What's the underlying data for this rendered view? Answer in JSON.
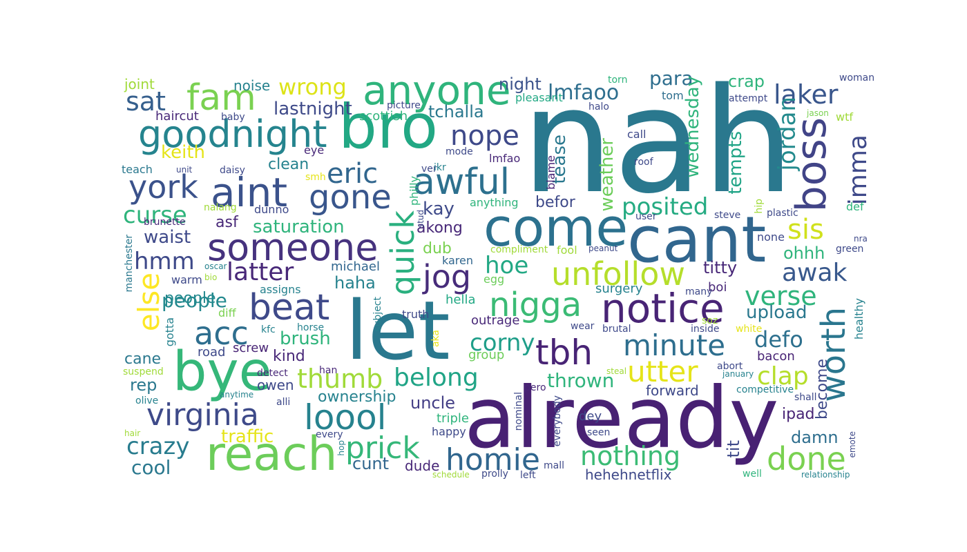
{
  "words": [
    {
      "text": "nah",
      "color": "#2a788e"
    },
    {
      "text": "already",
      "color": "#482173"
    },
    {
      "text": "let",
      "color": "#2a788e"
    },
    {
      "text": "cant",
      "color": "#31668e"
    },
    {
      "text": "bro",
      "color": "#22a884"
    },
    {
      "text": "come",
      "color": "#2c718e"
    },
    {
      "text": "bye",
      "color": "#35b779"
    },
    {
      "text": "reach",
      "color": "#6ccd5a"
    },
    {
      "text": "anyone",
      "color": "#2fb47c"
    },
    {
      "text": "aint",
      "color": "#3b528b"
    },
    {
      "text": "someone",
      "color": "#46327e"
    },
    {
      "text": "goodnight",
      "color": "#25848e"
    },
    {
      "text": "beat",
      "color": "#3e4989"
    },
    {
      "text": "notice",
      "color": "#482475"
    },
    {
      "text": "virginia",
      "color": "#3e4a89"
    },
    {
      "text": "loool",
      "color": "#26828e"
    },
    {
      "text": "awful",
      "color": "#2d708e"
    },
    {
      "text": "boss",
      "color": "#414487"
    },
    {
      "text": "worth",
      "color": "#2a768e"
    },
    {
      "text": "tbh",
      "color": "#482475"
    },
    {
      "text": "nigga",
      "color": "#3bbb75"
    },
    {
      "text": "unfollow",
      "color": "#b5de2b"
    },
    {
      "text": "minute",
      "color": "#2e6e8e"
    },
    {
      "text": "homie",
      "color": "#31668e"
    },
    {
      "text": "prick",
      "color": "#35b779"
    },
    {
      "text": "done",
      "color": "#7ad151"
    },
    {
      "text": "gone",
      "color": "#39568c"
    },
    {
      "text": "fam",
      "color": "#7ad151"
    },
    {
      "text": "york",
      "color": "#3b528b"
    },
    {
      "text": "quick",
      "color": "#2ab07f"
    },
    {
      "text": "jog",
      "color": "#472c7a"
    },
    {
      "text": "acc",
      "color": "#2e6e8e"
    },
    {
      "text": "else",
      "color": "#fde725"
    },
    {
      "text": "sis",
      "color": "#d0e11c"
    },
    {
      "text": "eric",
      "color": "#31668e"
    },
    {
      "text": "nope",
      "color": "#3e4989"
    },
    {
      "text": "utter",
      "color": "#e5e419"
    },
    {
      "text": "thumb",
      "color": "#a0da39"
    },
    {
      "text": "belong",
      "color": "#20a486"
    },
    {
      "text": "nothing",
      "color": "#3bbb75"
    },
    {
      "text": "crazy",
      "color": "#287c8e"
    },
    {
      "text": "latter",
      "color": "#482878"
    },
    {
      "text": "awak",
      "color": "#38588c"
    },
    {
      "text": "verse",
      "color": "#2fb47c"
    },
    {
      "text": "clap",
      "color": "#b5de2b"
    },
    {
      "text": "corny",
      "color": "#1f9e89"
    },
    {
      "text": "hoe",
      "color": "#22a884"
    },
    {
      "text": "laker",
      "color": "#39568c"
    },
    {
      "text": "imma",
      "color": "#3e4989"
    },
    {
      "text": "jordan",
      "color": "#238a8d"
    },
    {
      "text": "posited",
      "color": "#25ab82"
    },
    {
      "text": "wrong",
      "color": "#dde318"
    },
    {
      "text": "lmfaoo",
      "color": "#2e6e8e"
    },
    {
      "text": "defo",
      "color": "#2d708e"
    },
    {
      "text": "sat",
      "color": "#355f8d"
    },
    {
      "text": "curse",
      "color": "#2fb47c"
    },
    {
      "text": "hmm",
      "color": "#3e4989"
    },
    {
      "text": "people",
      "color": "#23898e"
    },
    {
      "text": "thrown",
      "color": "#2fb47c"
    },
    {
      "text": "para",
      "color": "#2e6e8e"
    },
    {
      "text": "tempts",
      "color": "#20a486"
    },
    {
      "text": "wednesday",
      "color": "#2fb47c"
    },
    {
      "text": "weather",
      "color": "#6ccd5a"
    },
    {
      "text": "tease",
      "color": "#2a788e"
    },
    {
      "text": "lastnight",
      "color": "#3e4a89"
    },
    {
      "text": "keith",
      "color": "#e5e419"
    },
    {
      "text": "night",
      "color": "#3b528b"
    },
    {
      "text": "tchalla",
      "color": "#2a788e"
    },
    {
      "text": "saturation",
      "color": "#2fb47c"
    },
    {
      "text": "traffic",
      "color": "#e5e419"
    },
    {
      "text": "ownership",
      "color": "#26828e"
    },
    {
      "text": "uncle",
      "color": "#433e85"
    },
    {
      "text": "cunt",
      "color": "#31668e"
    },
    {
      "text": "cool",
      "color": "#2a788e"
    },
    {
      "text": "waist",
      "color": "#3e4989"
    },
    {
      "text": "brush",
      "color": "#2fb47c"
    },
    {
      "text": "kind",
      "color": "#482878"
    },
    {
      "text": "haha",
      "color": "#26828e"
    },
    {
      "text": "titty",
      "color": "#482878"
    },
    {
      "text": "ohhh",
      "color": "#2fb47c"
    },
    {
      "text": "upload",
      "color": "#2a788e"
    },
    {
      "text": "ipad",
      "color": "#482475"
    },
    {
      "text": "damn",
      "color": "#2e6e8e"
    },
    {
      "text": "tit",
      "color": "#3e4989"
    },
    {
      "text": "become",
      "color": "#3e4989"
    },
    {
      "text": "hehehnetflix",
      "color": "#3e4989"
    },
    {
      "text": "kay",
      "color": "#3e4a89"
    },
    {
      "text": "akong",
      "color": "#482878"
    },
    {
      "text": "befor",
      "color": "#3e4989"
    },
    {
      "text": "crap",
      "color": "#2fb47c"
    },
    {
      "text": "clean",
      "color": "#26828e"
    },
    {
      "text": "rep",
      "color": "#2a788e"
    },
    {
      "text": "cane",
      "color": "#2a788e"
    },
    {
      "text": "asf",
      "color": "#482878"
    },
    {
      "text": "dub",
      "color": "#7ad151"
    },
    {
      "text": "forward",
      "color": "#3e4989"
    },
    {
      "text": "outrage",
      "color": "#482878"
    },
    {
      "text": "group",
      "color": "#6ccd5a"
    },
    {
      "text": "road",
      "color": "#3e4989"
    },
    {
      "text": "screw",
      "color": "#482475"
    },
    {
      "text": "owen",
      "color": "#3e4989"
    },
    {
      "text": "michael",
      "color": "#31668e"
    },
    {
      "text": "karen",
      "color": "#31668e"
    },
    {
      "text": "hella",
      "color": "#22a884"
    },
    {
      "text": "dude",
      "color": "#482878"
    },
    {
      "text": "triple",
      "color": "#2fb47c"
    },
    {
      "text": "happy",
      "color": "#3e4989"
    },
    {
      "text": "surgery",
      "color": "#26828e"
    },
    {
      "text": "boi",
      "color": "#482878"
    },
    {
      "text": "dey",
      "color": "#3e4989"
    },
    {
      "text": "bacon",
      "color": "#482475"
    },
    {
      "text": "haircut",
      "color": "#482878"
    },
    {
      "text": "joint",
      "color": "#a0da39"
    },
    {
      "text": "noise",
      "color": "#26828e"
    },
    {
      "text": "scottish",
      "color": "#2fb47c"
    },
    {
      "text": "pleasant",
      "color": "#22a884"
    },
    {
      "text": "tom",
      "color": "#2e6e8e"
    },
    {
      "text": "teach",
      "color": "#2a788e"
    },
    {
      "text": "lmfao",
      "color": "#482878"
    },
    {
      "text": "anything",
      "color": "#2fb47c"
    },
    {
      "text": "blame",
      "color": "#482475"
    },
    {
      "text": "call",
      "color": "#3e4989"
    },
    {
      "text": "dunno",
      "color": "#3e4989"
    },
    {
      "text": "people2",
      "color": "#23898e"
    },
    {
      "text": "warm",
      "color": "#3e4989"
    },
    {
      "text": "assigns",
      "color": "#26828e"
    },
    {
      "text": "gotta",
      "color": "#26828e"
    },
    {
      "text": "diff",
      "color": "#7ad151"
    },
    {
      "text": "truth",
      "color": "#3e4989"
    },
    {
      "text": "egg",
      "color": "#6ccd5a"
    },
    {
      "text": "fool",
      "color": "#a0da39"
    },
    {
      "text": "none",
      "color": "#3e4989"
    },
    {
      "text": "plastic",
      "color": "#3e4989"
    },
    {
      "text": "steve",
      "color": "#3e4989"
    },
    {
      "text": "user",
      "color": "#3e4989"
    },
    {
      "text": "wtf",
      "color": "#a0da39"
    },
    {
      "text": "def",
      "color": "#2fb47c"
    },
    {
      "text": "hip",
      "color": "#a0da39"
    },
    {
      "text": "healthy",
      "color": "#26828e"
    },
    {
      "text": "halo",
      "color": "#3e4989"
    },
    {
      "text": "attempt",
      "color": "#3e4989"
    },
    {
      "text": "woman",
      "color": "#3e4989"
    },
    {
      "text": "torn",
      "color": "#2fb47c"
    },
    {
      "text": "picture",
      "color": "#3e4989"
    },
    {
      "text": "mode",
      "color": "#3e4989"
    },
    {
      "text": "eye",
      "color": "#482878"
    },
    {
      "text": "daisy",
      "color": "#3e4989"
    },
    {
      "text": "unit",
      "color": "#3e4989"
    },
    {
      "text": "baby",
      "color": "#3e4989"
    },
    {
      "text": "smh",
      "color": "#e5e419"
    },
    {
      "text": "ver",
      "color": "#3e4989"
    },
    {
      "text": "ikr",
      "color": "#26828e"
    },
    {
      "text": "roof",
      "color": "#3e4989"
    },
    {
      "text": "jason",
      "color": "#7ad151"
    },
    {
      "text": "philly",
      "color": "#2fb47c"
    },
    {
      "text": "stud",
      "color": "#3e4989"
    },
    {
      "text": "brunette",
      "color": "#482878"
    },
    {
      "text": "nalang",
      "color": "#a0da39"
    },
    {
      "text": "oscar",
      "color": "#26828e"
    },
    {
      "text": "bio",
      "color": "#a0da39"
    },
    {
      "text": "manchester",
      "color": "#2a788e"
    },
    {
      "text": "compliment",
      "color": "#a0da39"
    },
    {
      "text": "peanut",
      "color": "#3e4989"
    },
    {
      "text": "nra",
      "color": "#3e4989"
    },
    {
      "text": "green",
      "color": "#3e4989"
    },
    {
      "text": "many",
      "color": "#3e4989"
    },
    {
      "text": "kfc",
      "color": "#26828e"
    },
    {
      "text": "horse",
      "color": "#26828e"
    },
    {
      "text": "subject",
      "color": "#26828e"
    },
    {
      "text": "aka",
      "color": "#e5e419"
    },
    {
      "text": "han",
      "color": "#482878"
    },
    {
      "text": "pero",
      "color": "#482878"
    },
    {
      "text": "wear",
      "color": "#3e4989"
    },
    {
      "text": "brutal",
      "color": "#3e4989"
    },
    {
      "text": "inside",
      "color": "#3e4989"
    },
    {
      "text": "soz",
      "color": "#a0da39"
    },
    {
      "text": "white",
      "color": "#e5e419"
    },
    {
      "text": "abort",
      "color": "#3e4989"
    },
    {
      "text": "january",
      "color": "#26828e"
    },
    {
      "text": "competitive",
      "color": "#26828e"
    },
    {
      "text": "shall",
      "color": "#3e4989"
    },
    {
      "text": "suspend",
      "color": "#a0da39"
    },
    {
      "text": "detect",
      "color": "#482878"
    },
    {
      "text": "anytime",
      "color": "#26828e"
    },
    {
      "text": "alli",
      "color": "#3e4989"
    },
    {
      "text": "olive",
      "color": "#26828e"
    },
    {
      "text": "steal",
      "color": "#a0da39"
    },
    {
      "text": "nominal",
      "color": "#3e4989"
    },
    {
      "text": "everybody",
      "color": "#3e4989"
    },
    {
      "text": "seen",
      "color": "#3e4989"
    },
    {
      "text": "mall",
      "color": "#3e4989"
    },
    {
      "text": "left",
      "color": "#3e4989"
    },
    {
      "text": "prolly",
      "color": "#3e4989"
    },
    {
      "text": "schedule",
      "color": "#a0da39"
    },
    {
      "text": "every",
      "color": "#3e4989"
    },
    {
      "text": "hop",
      "color": "#26828e"
    },
    {
      "text": "hair",
      "color": "#a0da39"
    },
    {
      "text": "emote",
      "color": "#3e4989"
    },
    {
      "text": "well",
      "color": "#2fb47c"
    },
    {
      "text": "relationship",
      "color": "#26828e"
    }
  ]
}
